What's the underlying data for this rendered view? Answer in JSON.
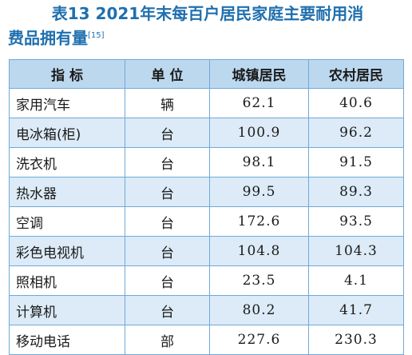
{
  "title": {
    "line1": "表13  2021年末每百户居民家庭主要耐用消",
    "line2": "费品拥有量",
    "footnote_ref": "[15]"
  },
  "table": {
    "headers": [
      "指  标",
      "单  位",
      "城镇居民",
      "农村居民"
    ],
    "rows": [
      {
        "name": "家用汽车",
        "unit": "辆",
        "urban": "62.1",
        "rural": "40.6"
      },
      {
        "name": "电冰箱(柜)",
        "unit": "台",
        "urban": "100.9",
        "rural": "96.2"
      },
      {
        "name": "洗衣机",
        "unit": "台",
        "urban": "98.1",
        "rural": "91.5"
      },
      {
        "name": "热水器",
        "unit": "台",
        "urban": "99.5",
        "rural": "89.3"
      },
      {
        "name": "空调",
        "unit": "台",
        "urban": "172.6",
        "rural": "93.5"
      },
      {
        "name": "彩色电视机",
        "unit": "台",
        "urban": "104.8",
        "rural": "104.3"
      },
      {
        "name": "照相机",
        "unit": "台",
        "urban": "23.5",
        "rural": "4.1"
      },
      {
        "name": "计算机",
        "unit": "台",
        "urban": "80.2",
        "rural": "41.7"
      },
      {
        "name": "移动电话",
        "unit": "部",
        "urban": "227.6",
        "rural": "230.3"
      }
    ]
  },
  "colors": {
    "title": "#1f6fae",
    "header_bg": "#bcd8ef",
    "shade_bg": "#dcebf7",
    "border": "#6fa9d9"
  }
}
